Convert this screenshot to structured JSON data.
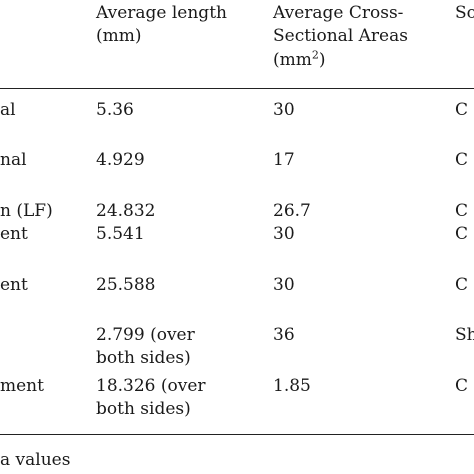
{
  "header": {
    "col_name": "",
    "col_length": [
      "Average length",
      "(mm)"
    ],
    "col_area_line1": "Average Cross-",
    "col_area_line2": "Sectional Areas",
    "col_area_unit_open": "(mm",
    "col_area_unit_sup": "2",
    "col_area_unit_close": ")",
    "col_source": "So"
  },
  "rows": [
    {
      "name": "al",
      "length": [
        "5.36"
      ],
      "area": "30",
      "source": "C"
    },
    {
      "name": "nal",
      "length": [
        "4.929"
      ],
      "area": "17",
      "source": "C"
    },
    {
      "name": "n (LF)",
      "length": [
        "24.832"
      ],
      "area": "26.7",
      "source": "C"
    },
    {
      "name": "ent",
      "length": [
        "5.541"
      ],
      "area": "30",
      "source": "C"
    },
    {
      "name": "ent",
      "length": [
        "25.588"
      ],
      "area": "30",
      "source": "C"
    },
    {
      "name": "",
      "length": [
        "2.799 (over",
        "both sides)"
      ],
      "area": "36",
      "source": "Sh"
    },
    {
      "name": "ment",
      "length": [
        "18.326 (over",
        "both sides)"
      ],
      "area": "1.85",
      "source": "C"
    }
  ],
  "footnote": "a values"
}
